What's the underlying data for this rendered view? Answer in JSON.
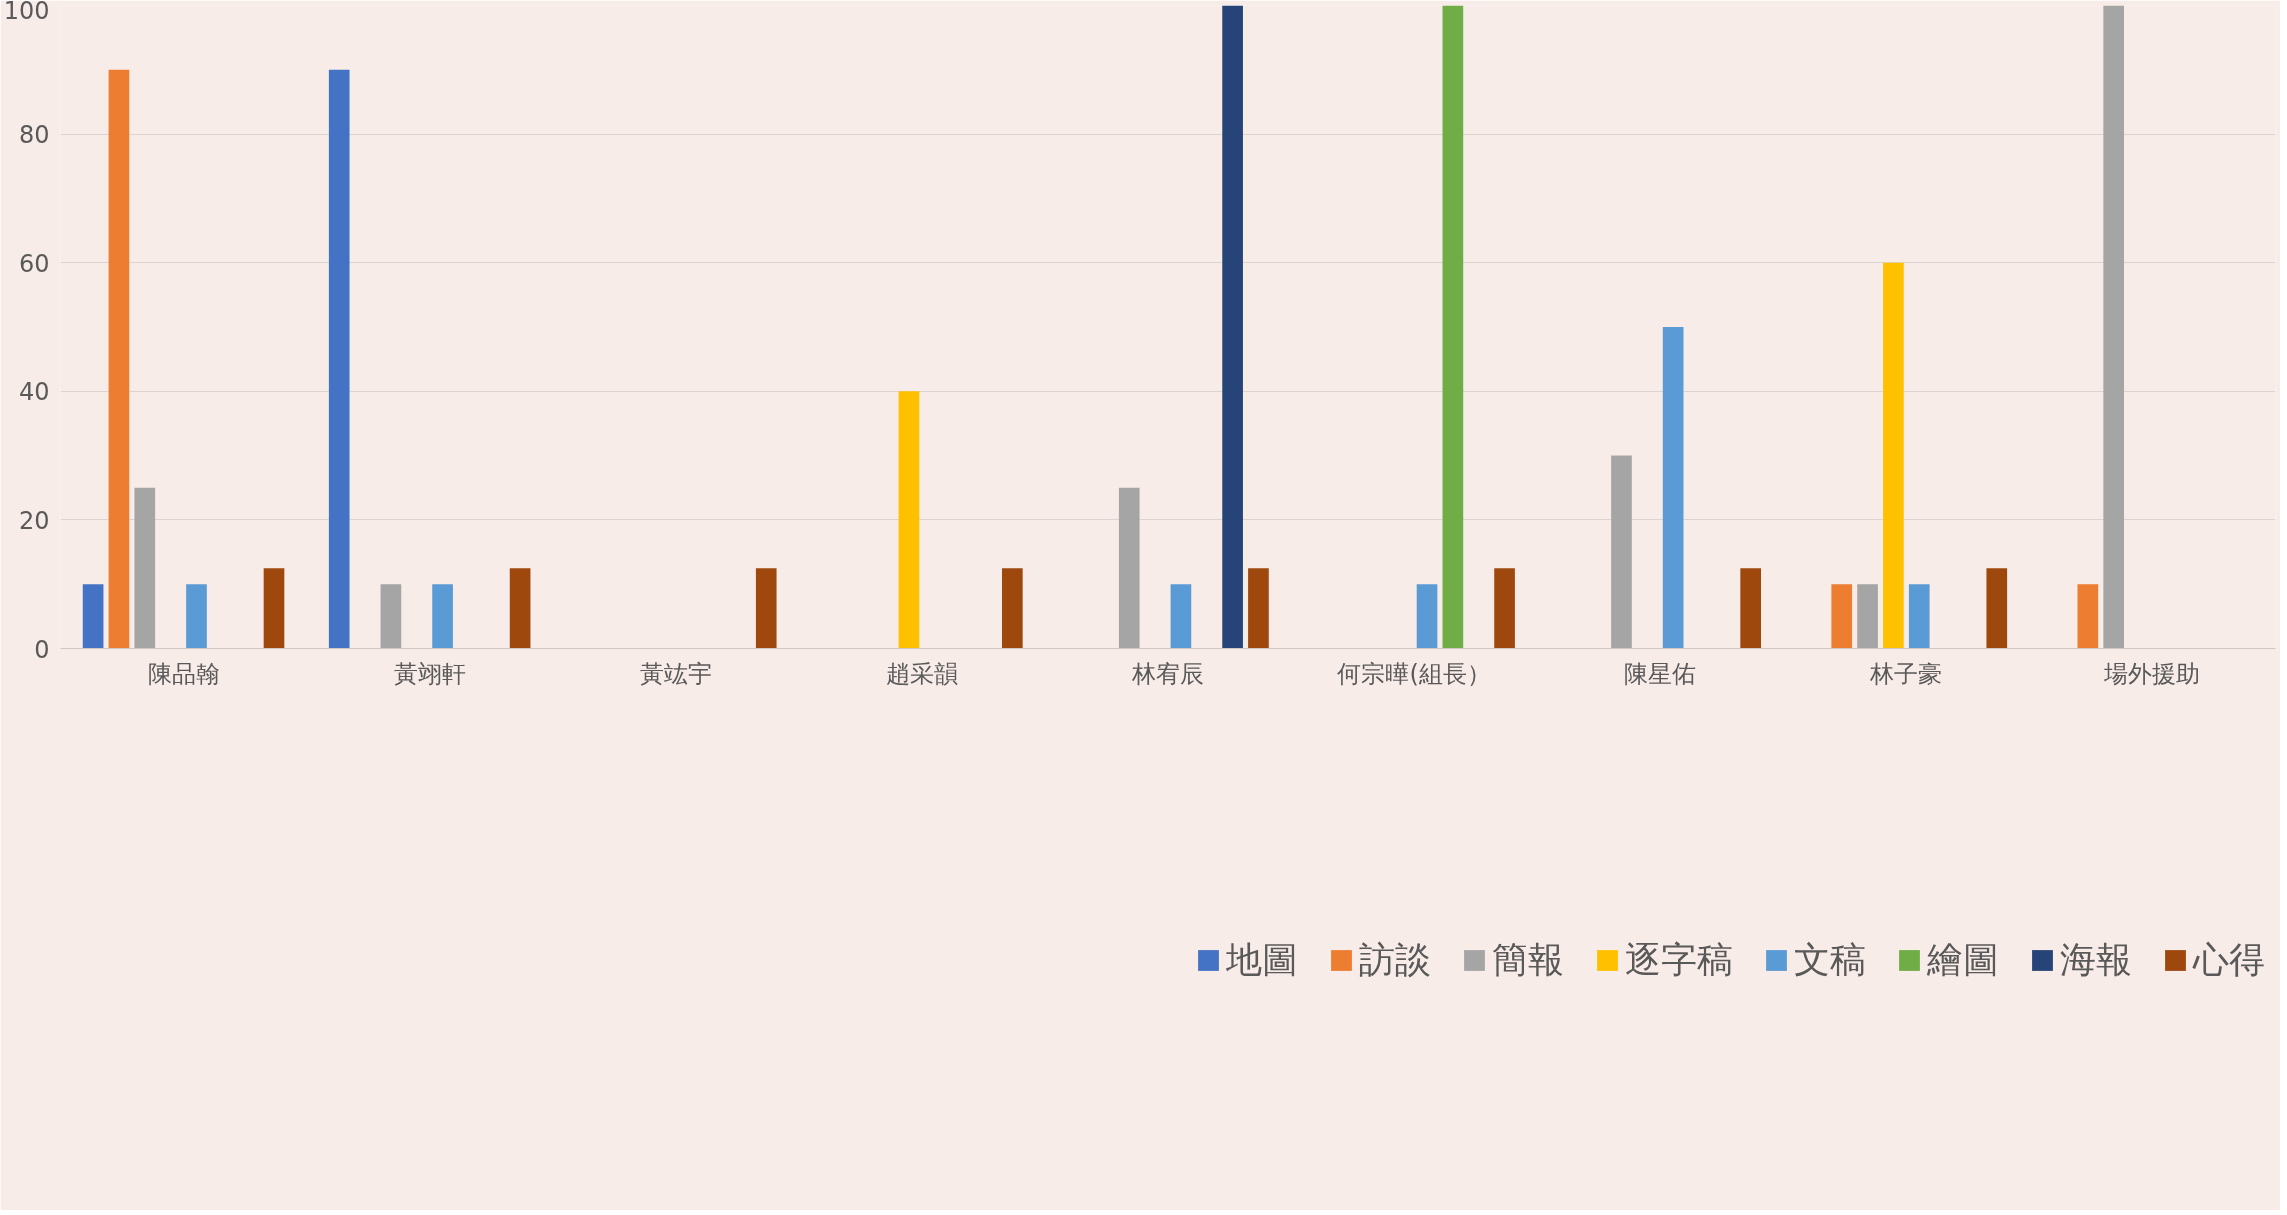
{
  "chart_data": {
    "type": "bar",
    "categories": [
      "陳品翰",
      "黃翊軒",
      "黃竑宇",
      "趙采韻",
      "林宥辰",
      "何宗曄(組長）",
      "陳星佑",
      "林子豪",
      "場外援助"
    ],
    "series": [
      {
        "name": "地圖",
        "color": "#4472c4",
        "values": [
          10,
          90,
          null,
          null,
          null,
          null,
          null,
          null,
          null
        ]
      },
      {
        "name": "訪談",
        "color": "#ed7d31",
        "values": [
          90,
          null,
          null,
          null,
          null,
          null,
          null,
          10,
          10
        ]
      },
      {
        "name": "簡報",
        "color": "#a5a5a5",
        "values": [
          25,
          10,
          null,
          null,
          25,
          null,
          30,
          10,
          100
        ]
      },
      {
        "name": "逐字稿",
        "color": "#ffc000",
        "values": [
          null,
          null,
          null,
          40,
          null,
          null,
          null,
          60,
          null
        ]
      },
      {
        "name": "文稿",
        "color": "#5b9bd5",
        "values": [
          10,
          10,
          null,
          null,
          10,
          10,
          50,
          10,
          null
        ]
      },
      {
        "name": "繪圖",
        "color": "#70ad47",
        "values": [
          null,
          null,
          null,
          null,
          null,
          100,
          null,
          null,
          null
        ]
      },
      {
        "name": "海報",
        "color": "#264478",
        "values": [
          null,
          null,
          null,
          null,
          100,
          null,
          null,
          null,
          null
        ]
      },
      {
        "name": "心得",
        "color": "#9e480e",
        "values": [
          12.5,
          12.5,
          12.5,
          12.5,
          12.5,
          12.5,
          12.5,
          12.5,
          null
        ]
      }
    ],
    "ylim": [
      0,
      100
    ],
    "yticks": [
      0,
      20,
      40,
      60,
      80,
      100
    ],
    "grid": "y",
    "legend": "bottom"
  }
}
